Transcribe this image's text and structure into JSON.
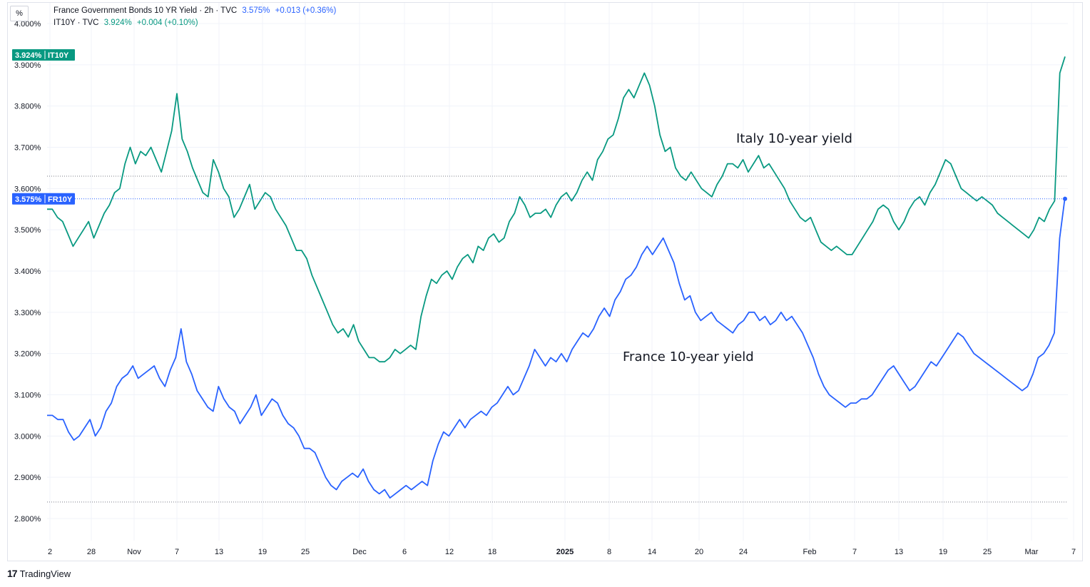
{
  "legend": {
    "fr_title": "France Government Bonds 10 YR Yield · 2h · TVC",
    "fr_value": "3.575%",
    "fr_change": "+0.013 (+0.36%)",
    "it_title": "IT10Y · TVC",
    "it_value": "3.924%",
    "it_change": "+0.004 (+0.10%)"
  },
  "unit_label": "%",
  "branding": {
    "name": "TradingView",
    "logo_mark": "17"
  },
  "colors": {
    "italy": "#089981",
    "france": "#2962ff",
    "grid": "#f0f3fa",
    "text": "#131722"
  },
  "chart_data": {
    "type": "line",
    "y_unit": "%",
    "ylim": [
      2.75,
      4.02
    ],
    "y_ticks": [
      "4.000%",
      "3.900%",
      "3.800%",
      "3.700%",
      "3.600%",
      "3.500%",
      "3.400%",
      "3.300%",
      "3.200%",
      "3.100%",
      "3.000%",
      "2.900%",
      "2.800%"
    ],
    "x_ticks": [
      {
        "label": "2",
        "bold": false
      },
      {
        "label": "28",
        "bold": false
      },
      {
        "label": "Nov",
        "bold": false
      },
      {
        "label": "7",
        "bold": false
      },
      {
        "label": "13",
        "bold": false
      },
      {
        "label": "19",
        "bold": false
      },
      {
        "label": "25",
        "bold": false
      },
      {
        "label": "Dec",
        "bold": false
      },
      {
        "label": "6",
        "bold": false
      },
      {
        "label": "12",
        "bold": false
      },
      {
        "label": "18",
        "bold": false
      },
      {
        "label": "2025",
        "bold": true
      },
      {
        "label": "8",
        "bold": false
      },
      {
        "label": "14",
        "bold": false
      },
      {
        "label": "20",
        "bold": false
      },
      {
        "label": "24",
        "bold": false
      },
      {
        "label": "Feb",
        "bold": false
      },
      {
        "label": "7",
        "bold": false
      },
      {
        "label": "13",
        "bold": false
      },
      {
        "label": "19",
        "bold": false
      },
      {
        "label": "25",
        "bold": false
      },
      {
        "label": "Mar",
        "bold": false
      },
      {
        "label": "7",
        "bold": false
      }
    ],
    "annotations": {
      "italy": "Italy 10-year yield",
      "france": "France 10-year yield"
    },
    "reference_lines": [
      3.63,
      2.84
    ],
    "series": [
      {
        "name": "IT10Y",
        "last_value": "3.924%",
        "tag": "IT10Y",
        "values": [
          3.55,
          3.55,
          3.53,
          3.52,
          3.49,
          3.46,
          3.48,
          3.5,
          3.52,
          3.48,
          3.51,
          3.54,
          3.56,
          3.59,
          3.6,
          3.66,
          3.7,
          3.66,
          3.69,
          3.68,
          3.7,
          3.67,
          3.64,
          3.69,
          3.74,
          3.83,
          3.72,
          3.69,
          3.65,
          3.62,
          3.59,
          3.58,
          3.67,
          3.64,
          3.6,
          3.58,
          3.53,
          3.55,
          3.58,
          3.61,
          3.55,
          3.57,
          3.59,
          3.58,
          3.55,
          3.53,
          3.51,
          3.48,
          3.45,
          3.45,
          3.43,
          3.39,
          3.36,
          3.33,
          3.3,
          3.27,
          3.25,
          3.26,
          3.24,
          3.27,
          3.23,
          3.21,
          3.19,
          3.19,
          3.18,
          3.18,
          3.19,
          3.21,
          3.2,
          3.21,
          3.22,
          3.21,
          3.29,
          3.34,
          3.38,
          3.37,
          3.39,
          3.4,
          3.38,
          3.41,
          3.43,
          3.44,
          3.42,
          3.46,
          3.45,
          3.48,
          3.49,
          3.47,
          3.48,
          3.52,
          3.54,
          3.58,
          3.56,
          3.53,
          3.54,
          3.54,
          3.55,
          3.53,
          3.56,
          3.58,
          3.59,
          3.57,
          3.59,
          3.62,
          3.64,
          3.62,
          3.67,
          3.69,
          3.72,
          3.73,
          3.77,
          3.82,
          3.84,
          3.82,
          3.85,
          3.88,
          3.85,
          3.8,
          3.73,
          3.69,
          3.7,
          3.65,
          3.63,
          3.62,
          3.64,
          3.62,
          3.6,
          3.59,
          3.58,
          3.61,
          3.63,
          3.66,
          3.66,
          3.65,
          3.67,
          3.64,
          3.66,
          3.68,
          3.65,
          3.66,
          3.64,
          3.62,
          3.6,
          3.57,
          3.55,
          3.53,
          3.52,
          3.53,
          3.5,
          3.47,
          3.46,
          3.45,
          3.46,
          3.45,
          3.44,
          3.44,
          3.46,
          3.48,
          3.5,
          3.52,
          3.55,
          3.56,
          3.55,
          3.52,
          3.5,
          3.52,
          3.55,
          3.57,
          3.58,
          3.56,
          3.59,
          3.61,
          3.64,
          3.67,
          3.66,
          3.63,
          3.6,
          3.59,
          3.58,
          3.57,
          3.58,
          3.57,
          3.56,
          3.54,
          3.53,
          3.52,
          3.51,
          3.5,
          3.49,
          3.48,
          3.5,
          3.53,
          3.52,
          3.55,
          3.57,
          3.88,
          3.92
        ]
      },
      {
        "name": "FR10Y",
        "last_value": "3.575%",
        "tag": "FR10Y",
        "values": [
          3.05,
          3.05,
          3.04,
          3.04,
          3.01,
          2.99,
          3.0,
          3.02,
          3.04,
          3.0,
          3.02,
          3.06,
          3.08,
          3.12,
          3.14,
          3.15,
          3.17,
          3.14,
          3.15,
          3.16,
          3.17,
          3.14,
          3.12,
          3.16,
          3.19,
          3.26,
          3.18,
          3.15,
          3.11,
          3.09,
          3.07,
          3.06,
          3.12,
          3.09,
          3.07,
          3.06,
          3.03,
          3.05,
          3.07,
          3.1,
          3.05,
          3.07,
          3.09,
          3.08,
          3.05,
          3.03,
          3.02,
          3.0,
          2.97,
          2.97,
          2.96,
          2.93,
          2.9,
          2.88,
          2.87,
          2.89,
          2.9,
          2.91,
          2.9,
          2.92,
          2.89,
          2.87,
          2.86,
          2.87,
          2.85,
          2.86,
          2.87,
          2.88,
          2.87,
          2.88,
          2.89,
          2.88,
          2.94,
          2.98,
          3.01,
          3.0,
          3.02,
          3.04,
          3.02,
          3.04,
          3.05,
          3.06,
          3.05,
          3.07,
          3.08,
          3.1,
          3.12,
          3.1,
          3.11,
          3.14,
          3.17,
          3.21,
          3.19,
          3.17,
          3.19,
          3.18,
          3.2,
          3.18,
          3.21,
          3.23,
          3.25,
          3.24,
          3.26,
          3.29,
          3.31,
          3.29,
          3.33,
          3.35,
          3.38,
          3.39,
          3.41,
          3.44,
          3.46,
          3.44,
          3.46,
          3.48,
          3.45,
          3.42,
          3.37,
          3.33,
          3.34,
          3.3,
          3.28,
          3.29,
          3.3,
          3.28,
          3.27,
          3.26,
          3.25,
          3.27,
          3.28,
          3.3,
          3.3,
          3.28,
          3.29,
          3.27,
          3.28,
          3.3,
          3.28,
          3.29,
          3.27,
          3.25,
          3.22,
          3.19,
          3.15,
          3.12,
          3.1,
          3.09,
          3.08,
          3.07,
          3.08,
          3.08,
          3.09,
          3.09,
          3.1,
          3.12,
          3.14,
          3.16,
          3.17,
          3.15,
          3.13,
          3.11,
          3.12,
          3.14,
          3.16,
          3.18,
          3.17,
          3.19,
          3.21,
          3.23,
          3.25,
          3.24,
          3.22,
          3.2,
          3.19,
          3.18,
          3.17,
          3.16,
          3.15,
          3.14,
          3.13,
          3.12,
          3.11,
          3.12,
          3.15,
          3.19,
          3.2,
          3.22,
          3.25,
          3.48,
          3.58
        ]
      }
    ]
  }
}
